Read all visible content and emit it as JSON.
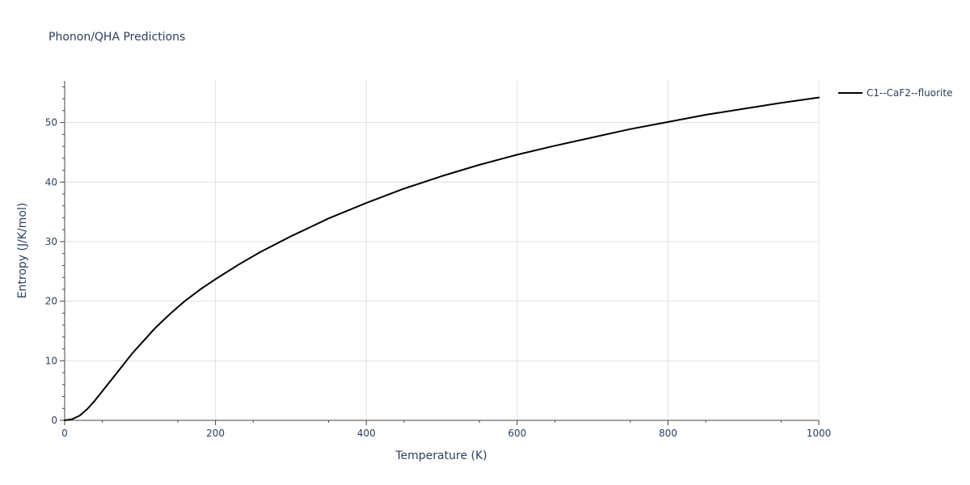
{
  "chart_data": {
    "type": "line",
    "title": "Phonon/QHA Predictions",
    "xlabel": "Temperature (K)",
    "ylabel": "Entropy (J/K/mol)",
    "xlim": [
      0,
      1000
    ],
    "ylim": [
      0,
      57
    ],
    "x_ticks": [
      0,
      200,
      400,
      600,
      800,
      1000
    ],
    "y_ticks": [
      0,
      10,
      20,
      30,
      40,
      50
    ],
    "x_tick_labels": [
      "0",
      "200",
      "400",
      "600",
      "800",
      "1000"
    ],
    "y_tick_labels": [
      "0",
      "10",
      "20",
      "30",
      "40",
      "50"
    ],
    "grid": true,
    "legend_position": "top-right outside",
    "series": [
      {
        "name": "C1--CaF2--fluorite",
        "color": "#000000",
        "x": [
          0,
          10,
          20,
          30,
          40,
          50,
          60,
          70,
          80,
          90,
          100,
          120,
          140,
          160,
          180,
          200,
          230,
          260,
          300,
          350,
          400,
          450,
          500,
          550,
          600,
          650,
          700,
          750,
          800,
          850,
          900,
          950,
          1000
        ],
        "y": [
          0.0,
          0.2,
          0.8,
          1.9,
          3.3,
          4.9,
          6.5,
          8.1,
          9.7,
          11.3,
          12.7,
          15.5,
          17.9,
          20.1,
          22.0,
          23.7,
          26.1,
          28.3,
          30.9,
          33.9,
          36.5,
          38.9,
          41.0,
          42.9,
          44.6,
          46.1,
          47.5,
          48.9,
          50.1,
          51.3,
          52.3,
          53.3,
          54.2
        ]
      }
    ]
  }
}
